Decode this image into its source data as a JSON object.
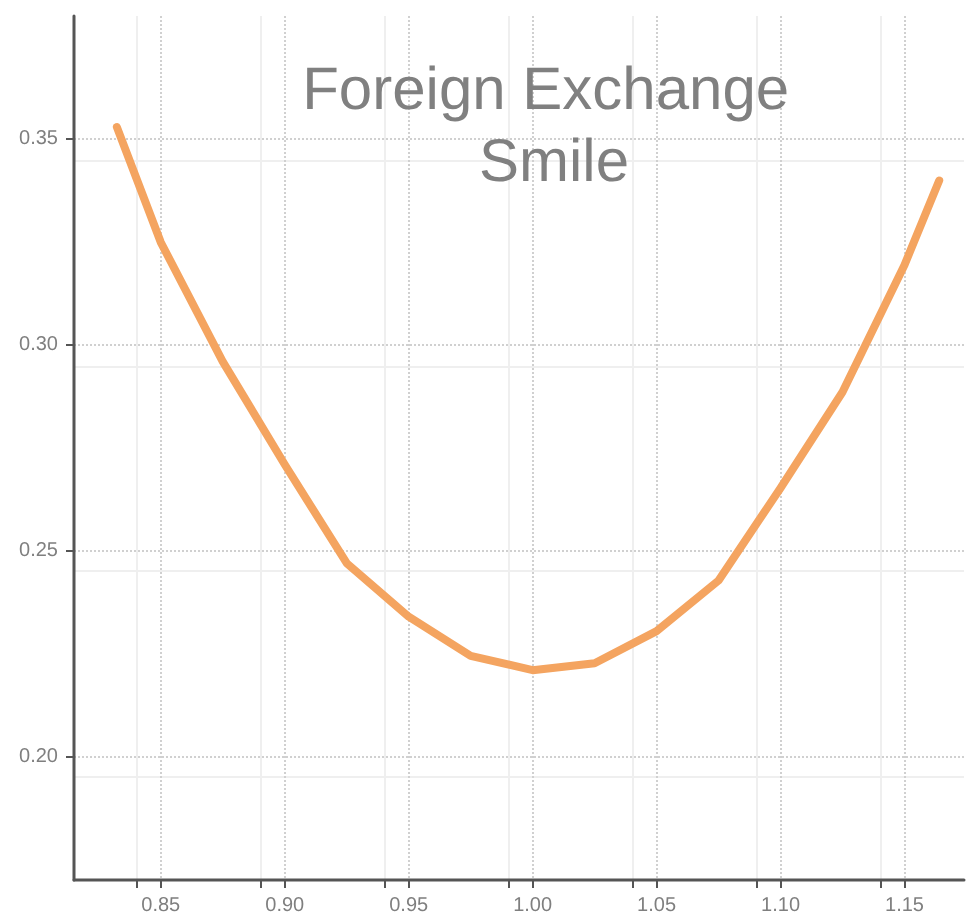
{
  "chart_data": {
    "type": "line",
    "title": "Foreign Exchange Smile",
    "x": [
      0.8323,
      0.85,
      0.875,
      0.9,
      0.925,
      0.95,
      0.975,
      1.0,
      1.025,
      1.05,
      1.075,
      1.1,
      1.125,
      1.15,
      1.164
    ],
    "series": [
      {
        "color": "#f4a460",
        "values": [
          0.353,
          0.325,
          0.296,
          0.271,
          0.247,
          0.234,
          0.2245,
          0.221,
          0.2227,
          0.2305,
          0.2428,
          0.2653,
          0.2886,
          0.3195,
          0.34
        ]
      }
    ],
    "xlim": [
      0.815,
      1.174
    ],
    "xticks": [
      {
        "value": 0.85,
        "label": "0.85"
      },
      {
        "value": 0.9,
        "label": "0.90"
      },
      {
        "value": 0.95,
        "label": "0.95"
      },
      {
        "value": 1.0,
        "label": "1.00"
      },
      {
        "value": 1.05,
        "label": "1.05"
      },
      {
        "value": 1.1,
        "label": "1.10"
      },
      {
        "value": 1.15,
        "label": "1.15"
      }
    ],
    "ylim": [
      0.17,
      0.38
    ],
    "yticks": [
      {
        "value": 0.2,
        "label": "0.20"
      },
      {
        "value": 0.25,
        "label": "0.25"
      },
      {
        "value": 0.3,
        "label": "0.30"
      },
      {
        "value": 0.35,
        "label": "0.35"
      }
    ],
    "grid": true,
    "marker": "none",
    "line_style": "solid"
  }
}
